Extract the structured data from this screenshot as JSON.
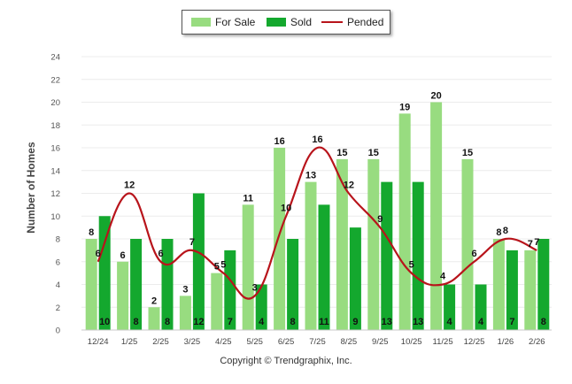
{
  "chart_data": {
    "type": "bar",
    "title": "",
    "xlabel": "",
    "ylabel": "Number of Homes",
    "ylim": [
      0,
      24
    ],
    "yticks": [
      0,
      2,
      4,
      6,
      8,
      10,
      12,
      14,
      16,
      18,
      20,
      22,
      24
    ],
    "categories": [
      "12/24",
      "1/25",
      "2/25",
      "3/25",
      "4/25",
      "5/25",
      "6/25",
      "7/25",
      "8/25",
      "9/25",
      "10/25",
      "11/25",
      "12/25",
      "1/26",
      "2/26"
    ],
    "series": [
      {
        "name": "For Sale",
        "kind": "bar",
        "color": "#98dc80",
        "values": [
          8,
          6,
          2,
          3,
          5,
          11,
          16,
          13,
          15,
          15,
          19,
          20,
          15,
          8,
          7
        ]
      },
      {
        "name": "Sold",
        "kind": "bar",
        "color": "#14a82e",
        "values": [
          10,
          8,
          8,
          12,
          7,
          4,
          8,
          11,
          9,
          13,
          13,
          4,
          4,
          7,
          8
        ]
      },
      {
        "name": "Pended",
        "kind": "line",
        "color": "#b8141b",
        "values": [
          6,
          12,
          6,
          7,
          5,
          3,
          10,
          16,
          12,
          9,
          5,
          4,
          6,
          8,
          7
        ]
      }
    ],
    "legend_position": "top-center",
    "grid": true
  },
  "legend": {
    "for_sale": "For Sale",
    "sold": "Sold",
    "pended": "Pended"
  },
  "footer": {
    "copyright": "Copyright © Trendgraphix, Inc."
  }
}
